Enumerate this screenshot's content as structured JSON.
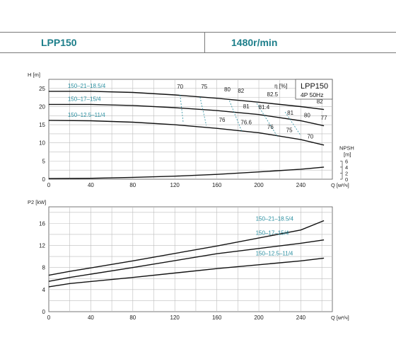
{
  "header": {
    "model": "LPP150",
    "speed": "1480r/min"
  },
  "colors": {
    "accent": "#1c7e8a",
    "curve": "#111111",
    "grid": "#bdbdbd",
    "label": "#2a8fa0"
  },
  "chart_data": [
    {
      "type": "line",
      "title": "LPP150",
      "subtitle": "4P  50Hz",
      "ylabel": "H [m]",
      "xlabel": "Q [м³/ч]",
      "xlim": [
        0,
        270
      ],
      "ylim": [
        0,
        27.5
      ],
      "xticks": [
        "0",
        "40",
        "80",
        "120",
        "160",
        "200",
        "240"
      ],
      "yticks": [
        "0",
        "5",
        "10",
        "15",
        "20",
        "25"
      ],
      "efficiency_label": "η [%]",
      "npsh_axis": {
        "label": "NPSH",
        "unit": "[m]",
        "ticks": [
          "0",
          "2",
          "4",
          "6"
        ],
        "range": [
          0,
          6
        ]
      },
      "series": [
        {
          "name": "150–21–18.5/4",
          "x": [
            0,
            40,
            80,
            120,
            160,
            200,
            240,
            262
          ],
          "values": [
            24.2,
            24.2,
            23.9,
            23.2,
            22.3,
            21.2,
            20.0,
            19.2
          ]
        },
        {
          "name": "150–17–15/4",
          "x": [
            0,
            40,
            80,
            120,
            160,
            200,
            240,
            262
          ],
          "values": [
            20.6,
            20.6,
            20.3,
            19.7,
            18.9,
            17.8,
            16.1,
            14.7
          ]
        },
        {
          "name": "150–12.5–11/4",
          "x": [
            0,
            40,
            80,
            120,
            160,
            200,
            240,
            262
          ],
          "values": [
            16.2,
            16.1,
            15.7,
            15.0,
            14.0,
            12.8,
            10.9,
            9.4
          ]
        },
        {
          "name": "",
          "unit": "NPSH [m]",
          "x": [
            0,
            40,
            80,
            120,
            160,
            200,
            240,
            262
          ],
          "values": [
            0.2,
            0.3,
            0.6,
            1.0,
            1.6,
            2.4,
            3.3,
            4.0
          ]
        }
      ],
      "efficiency_labels": [
        {
          "text": "70",
          "x": 125,
          "y": 25.0
        },
        {
          "text": "75",
          "x": 148,
          "y": 25.0
        },
        {
          "text": "80",
          "x": 170,
          "y": 24.2
        },
        {
          "text": "82",
          "x": 183,
          "y": 23.8
        },
        {
          "text": "82.5",
          "x": 213,
          "y": 22.8
        },
        {
          "text": "82",
          "x": 258,
          "y": 20.9
        },
        {
          "text": "81",
          "x": 188,
          "y": 19.5
        },
        {
          "text": "81.4",
          "x": 205,
          "y": 19.3
        },
        {
          "text": "81",
          "x": 230,
          "y": 17.7
        },
        {
          "text": "80",
          "x": 246,
          "y": 17.1
        },
        {
          "text": "77",
          "x": 262,
          "y": 16.4
        },
        {
          "text": "76",
          "x": 165,
          "y": 15.8
        },
        {
          "text": "76.6",
          "x": 188,
          "y": 15.1
        },
        {
          "text": "76",
          "x": 211,
          "y": 13.8
        },
        {
          "text": "75",
          "x": 229,
          "y": 13.0
        },
        {
          "text": "70",
          "x": 249,
          "y": 11.2
        }
      ]
    },
    {
      "type": "line",
      "ylabel": "P2 [kW]",
      "xlabel": "Q [м³/ч]",
      "xlim": [
        0,
        270
      ],
      "ylim": [
        0,
        19
      ],
      "xticks": [
        "0",
        "40",
        "80",
        "120",
        "160",
        "200",
        "240"
      ],
      "yticks": [
        "0",
        "4",
        "8",
        "12",
        "16"
      ],
      "series": [
        {
          "name": "150–21–18.5/4",
          "x": [
            0,
            20,
            80,
            160,
            240,
            262
          ],
          "values": [
            6.6,
            7.3,
            9.2,
            11.9,
            14.8,
            16.5
          ]
        },
        {
          "name": "150–17–15/4",
          "x": [
            0,
            20,
            80,
            160,
            240,
            262
          ],
          "values": [
            5.5,
            6.2,
            8.0,
            10.5,
            12.4,
            13.0
          ]
        },
        {
          "name": "150–12.5–11/4",
          "x": [
            0,
            20,
            80,
            160,
            240,
            262
          ],
          "values": [
            4.5,
            5.1,
            6.2,
            7.8,
            9.2,
            9.7
          ]
        }
      ]
    }
  ]
}
